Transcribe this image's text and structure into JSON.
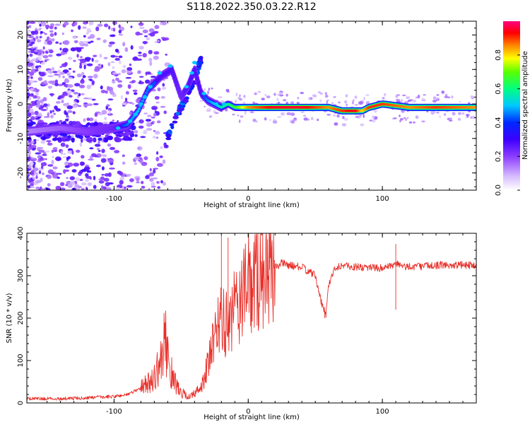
{
  "title": "S118.2022.350.03.22.R12",
  "colors": {
    "snr_line": "#e8302a",
    "spectrogram_low": "#c8a8ff",
    "spectrogram_mid": "#5a00ff",
    "spectrogram_high": "#ff0000",
    "colorbar": [
      "#ffffff",
      "#c080ff",
      "#6000ff",
      "#0000ff",
      "#00c8ff",
      "#00ff80",
      "#40ff00",
      "#ffff00",
      "#ff8000",
      "#ff0000",
      "#ff0080"
    ]
  },
  "chart_data": [
    {
      "type": "heatmap",
      "title": "",
      "xlabel": "Height of straight line (km)",
      "ylabel": "Frequency (Hz)",
      "xlim": [
        -165,
        170
      ],
      "ylim": [
        -25,
        24
      ],
      "xticks": [
        -100,
        0,
        100
      ],
      "yticks": [
        -20,
        -10,
        0,
        10,
        20
      ],
      "grid": false,
      "colorbar": {
        "label": "Normalized spectral amplitude",
        "range": [
          0.0,
          1.0
        ],
        "ticks": [
          "0.0",
          "0.2",
          "0.4",
          "0.6",
          "0.8"
        ]
      },
      "dominant_ridge": {
        "x": [
          -165,
          -140,
          -120,
          -100,
          -90,
          -82,
          -75,
          -65,
          -57,
          -50,
          -45,
          -40,
          -35,
          -30,
          -25,
          -20,
          -15,
          -10,
          0,
          20,
          40,
          60,
          70,
          80,
          85,
          90,
          100,
          120,
          140,
          170
        ],
        "y": [
          -8,
          -7,
          -8,
          -7,
          -6,
          -2,
          4,
          8,
          10,
          2,
          5,
          10,
          3,
          1,
          0,
          -1,
          0,
          -1,
          -1,
          -1,
          -1,
          -1,
          -2,
          -2,
          -2,
          -1,
          0,
          -1,
          -1,
          -1
        ],
        "amplitude": [
          0.2,
          0.25,
          0.3,
          0.35,
          0.45,
          0.5,
          0.45,
          0.4,
          0.4,
          0.35,
          0.4,
          0.4,
          0.4,
          0.45,
          0.5,
          0.55,
          0.6,
          0.65,
          0.85,
          0.95,
          0.95,
          0.85,
          0.9,
          0.95,
          0.8,
          0.9,
          0.9,
          0.85,
          0.9,
          0.85
        ]
      }
    },
    {
      "type": "line",
      "title": "",
      "xlabel": "Height of straight line (km)",
      "ylabel": "SNR (10 * v/v)",
      "xlim": [
        -165,
        170
      ],
      "ylim": [
        0,
        400
      ],
      "xticks": [
        -100,
        0,
        100
      ],
      "yticks": [
        0,
        100,
        200,
        300,
        400
      ],
      "grid": false,
      "x": [
        -165,
        -140,
        -120,
        -100,
        -90,
        -80,
        -70,
        -65,
        -62,
        -58,
        -55,
        -50,
        -45,
        -40,
        -35,
        -30,
        -25,
        -20,
        -18,
        -15,
        -10,
        -5,
        0,
        5,
        10,
        15,
        20,
        25,
        30,
        40,
        45,
        50,
        55,
        58,
        60,
        65,
        70,
        80,
        90,
        100,
        105,
        110,
        111,
        115,
        120,
        130,
        140,
        150,
        160,
        170
      ],
      "y": [
        10,
        10,
        12,
        15,
        20,
        35,
        60,
        100,
        150,
        80,
        50,
        25,
        15,
        20,
        40,
        90,
        150,
        220,
        180,
        160,
        220,
        250,
        270,
        290,
        305,
        315,
        320,
        330,
        325,
        320,
        310,
        300,
        230,
        210,
        280,
        320,
        325,
        320,
        320,
        318,
        320,
        325,
        330,
        320,
        322,
        322,
        325,
        325,
        325,
        325
      ]
    }
  ]
}
